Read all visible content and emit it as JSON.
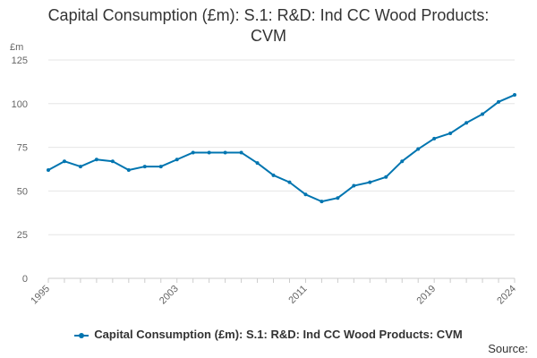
{
  "chart_data": {
    "type": "line",
    "title": "Capital Consumption (£m): S.1: R&D: Ind CC Wood Products: CVM",
    "unit_label": "£m",
    "ylim": [
      0,
      125
    ],
    "yticks": [
      0,
      25,
      50,
      75,
      100,
      125
    ],
    "xlim": [
      1995,
      2024
    ],
    "xticks": [
      1995,
      2003,
      2011,
      2019,
      2024
    ],
    "x": [
      1995,
      1996,
      1997,
      1998,
      1999,
      2000,
      2001,
      2002,
      2003,
      2004,
      2005,
      2006,
      2007,
      2008,
      2009,
      2010,
      2011,
      2012,
      2013,
      2014,
      2015,
      2016,
      2017,
      2018,
      2019,
      2020,
      2021,
      2022,
      2023,
      2024
    ],
    "series": [
      {
        "name": "Capital Consumption (£m): S.1: R&D: Ind CC Wood Products: CVM",
        "color": "#0075b0",
        "values": [
          62,
          67,
          64,
          68,
          67,
          62,
          64,
          64,
          68,
          72,
          72,
          72,
          72,
          66,
          59,
          55,
          48,
          44,
          46,
          53,
          55,
          58,
          67,
          74,
          80,
          83,
          89,
          94,
          101,
          105
        ]
      }
    ],
    "grid": "horizontal",
    "legend_position": "bottom"
  },
  "source_label": "Source:"
}
